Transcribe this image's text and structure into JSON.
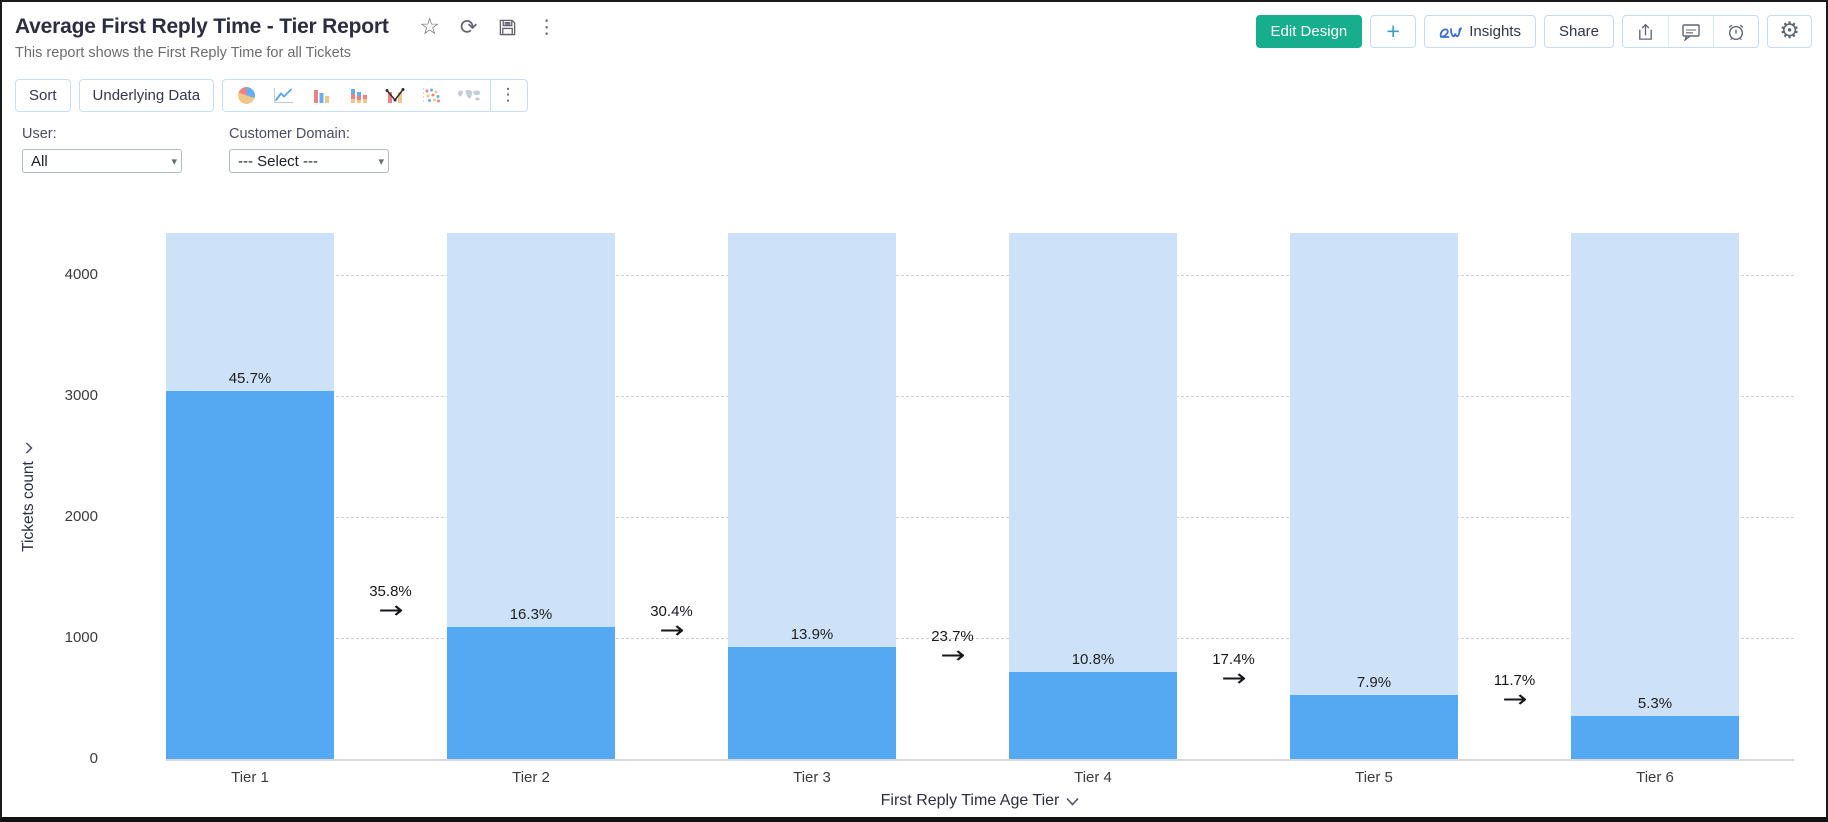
{
  "header": {
    "title": "Average First Reply Time - Tier Report",
    "subtitle": "This report shows the First Reply Time for all Tickets",
    "title_icons": [
      {
        "name": "favorite-star-icon",
        "glyph": "star"
      },
      {
        "name": "refresh-icon",
        "glyph": "refresh"
      },
      {
        "name": "save-icon",
        "glyph": "floppy"
      },
      {
        "name": "more-vertical-icon",
        "glyph": "dots"
      }
    ],
    "buttons": {
      "edit_design": "Edit Design",
      "add": "+",
      "insights": "Insights",
      "share": "Share"
    },
    "icon_buttons": [
      "export",
      "comment",
      "alarm"
    ],
    "settings_button": "settings"
  },
  "toolbar": {
    "sort": "Sort",
    "underlying_data": "Underlying Data",
    "chart_type_icons": [
      "pie",
      "line",
      "bar",
      "stacked-bar",
      "combo",
      "scatter",
      "map"
    ],
    "more_glyph": "⋮"
  },
  "filters": [
    {
      "label": "User:",
      "value": "All"
    },
    {
      "label": "Customer Domain:",
      "value": "--- Select ---"
    }
  ],
  "chart_data": {
    "type": "bar",
    "subtype": "tier-funnel",
    "categories": [
      "Tier 1",
      "Tier 2",
      "Tier 3",
      "Tier 4",
      "Tier 5",
      "Tier 6"
    ],
    "values": [
      3043,
      1089,
      925,
      721,
      529,
      356
    ],
    "bar_percent_labels": [
      "45.7%",
      "16.3%",
      "13.9%",
      "10.8%",
      "7.9%",
      "5.3%"
    ],
    "transition_percent_labels": [
      "35.8%",
      "30.4%",
      "23.7%",
      "17.4%",
      "11.7%"
    ],
    "xlabel": "First Reply Time Age Tier",
    "ylabel": "Tickets count",
    "ylim": [
      0,
      4350
    ],
    "yticks": [
      0,
      1000,
      2000,
      3000,
      4000
    ],
    "grid": "horizontal-dashed",
    "legend": "none",
    "colors": {
      "bar_fill": "#55a8f2",
      "bar_background": "#cde2f8",
      "gridline": "#cfcfcf",
      "label_text": "#1e1e1e"
    }
  },
  "colors": {
    "accent_green": "#16ae8c",
    "accent_teal": "#3a9fc4",
    "insights_blue": "#3a6fd8",
    "button_border": "#c5dcf1",
    "button_text": "#32344b",
    "icon_gray": "#5f6672"
  }
}
